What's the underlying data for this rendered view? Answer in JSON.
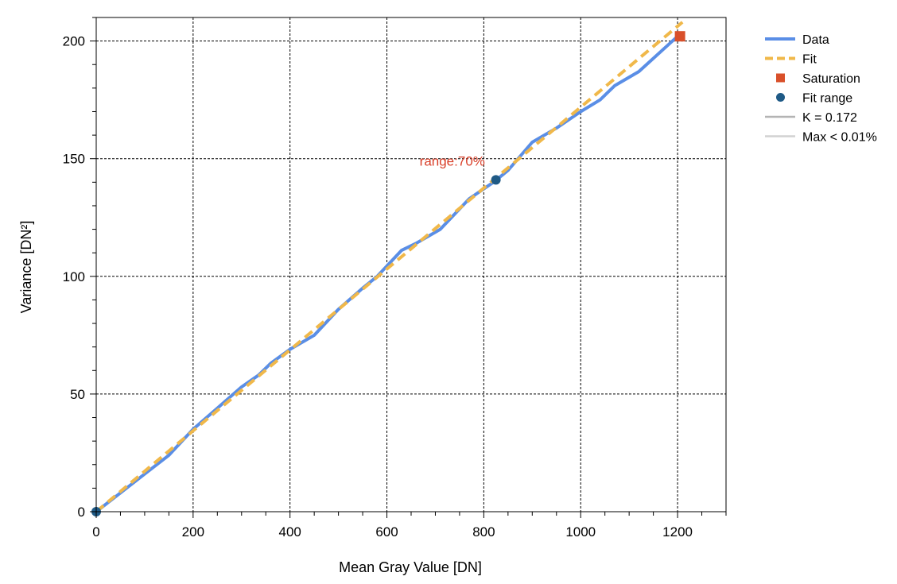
{
  "chart_data": {
    "type": "line",
    "xlabel": "Mean Gray Value [DN]",
    "ylabel": "Variance [DN²]",
    "xlim": [
      0,
      1300
    ],
    "ylim": [
      0,
      210
    ],
    "x_ticks": [
      0,
      200,
      400,
      600,
      800,
      1000,
      1200
    ],
    "y_ticks": [
      0,
      50,
      100,
      150,
      200
    ],
    "x_tick_labels": [
      "0",
      "200",
      "400",
      "600",
      "800",
      "1000",
      "1200"
    ],
    "y_tick_labels": [
      "0",
      "50",
      "100",
      "150",
      "200"
    ],
    "x_minor_step": 50,
    "y_minor_step": 10,
    "grid": true,
    "legend_placement": "outside-top-right",
    "series": [
      {
        "name": "Data",
        "style": "solid-line",
        "color": "#5a8ee6",
        "points": [
          [
            0,
            0
          ],
          [
            50,
            8
          ],
          [
            100,
            16
          ],
          [
            150,
            24
          ],
          [
            200,
            35
          ],
          [
            250,
            44
          ],
          [
            300,
            53
          ],
          [
            335,
            58
          ],
          [
            360,
            63
          ],
          [
            400,
            69
          ],
          [
            450,
            75
          ],
          [
            500,
            86
          ],
          [
            550,
            95
          ],
          [
            580,
            100
          ],
          [
            630,
            111
          ],
          [
            660,
            114
          ],
          [
            710,
            120
          ],
          [
            770,
            133
          ],
          [
            820,
            140
          ],
          [
            850,
            145
          ],
          [
            900,
            157
          ],
          [
            950,
            163
          ],
          [
            1000,
            170
          ],
          [
            1040,
            175
          ],
          [
            1070,
            181
          ],
          [
            1120,
            187
          ],
          [
            1200,
            202
          ]
        ]
      },
      {
        "name": "Fit",
        "style": "dashed-line",
        "color": "#f0b84a",
        "points": [
          [
            0,
            0
          ],
          [
            1210,
            208
          ]
        ]
      },
      {
        "name": "Saturation",
        "style": "square-marker",
        "color": "#d9502a",
        "points": [
          [
            1205,
            202
          ]
        ]
      },
      {
        "name": "Fit range",
        "style": "circle-marker",
        "color": "#1f5a86",
        "points": [
          [
            0,
            0
          ],
          [
            825,
            141
          ]
        ]
      }
    ],
    "legend_entries": [
      {
        "label": "Data",
        "style": "solid-line",
        "color": "#5a8ee6"
      },
      {
        "label": "Fit",
        "style": "dashed-line",
        "color": "#f0b84a"
      },
      {
        "label": "Saturation",
        "style": "square-marker",
        "color": "#d9502a"
      },
      {
        "label": "Fit range",
        "style": "circle-marker",
        "color": "#1f5a86"
      },
      {
        "label": "K = 0.172",
        "style": "thin-line",
        "color": "#b4b4b4"
      },
      {
        "label": "Max < 0.01%",
        "style": "thin-line",
        "color": "#d2d2d2"
      }
    ],
    "annotations": [
      {
        "text": "range:70%",
        "x": 735,
        "y": 147,
        "color": "#d9402a"
      }
    ]
  }
}
